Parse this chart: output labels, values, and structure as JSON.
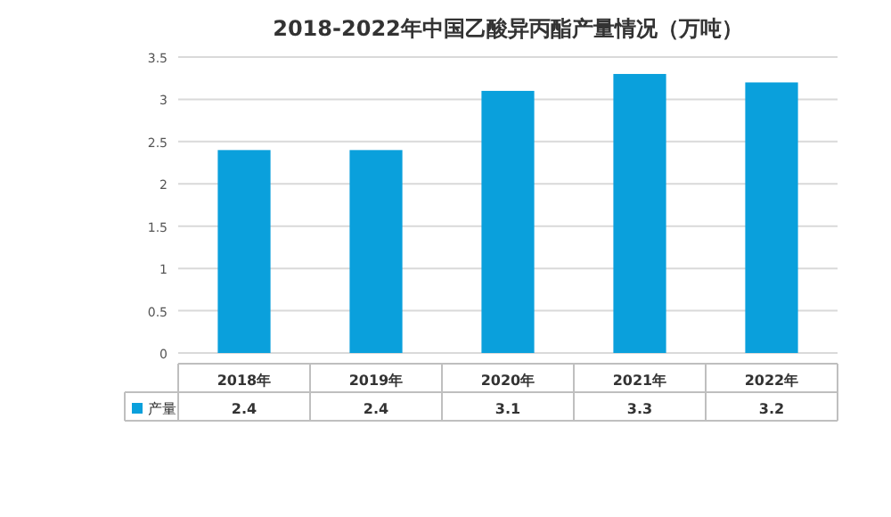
{
  "chart_data": {
    "type": "bar",
    "title": "2018-2022年中国乙酸异丙酯产量情况（万吨）",
    "categories": [
      "2018年",
      "2019年",
      "2020年",
      "2021年",
      "2022年"
    ],
    "series": [
      {
        "name": "产量",
        "color": "#0aa0dc",
        "values": [
          2.4,
          2.4,
          3.1,
          3.3,
          3.2
        ]
      }
    ],
    "ylim": [
      0,
      3.5
    ],
    "yticks": [
      0,
      0.5,
      1,
      1.5,
      2,
      2.5,
      3,
      3.5
    ],
    "grid": "y",
    "legend": "bottom",
    "data_labels": true
  }
}
